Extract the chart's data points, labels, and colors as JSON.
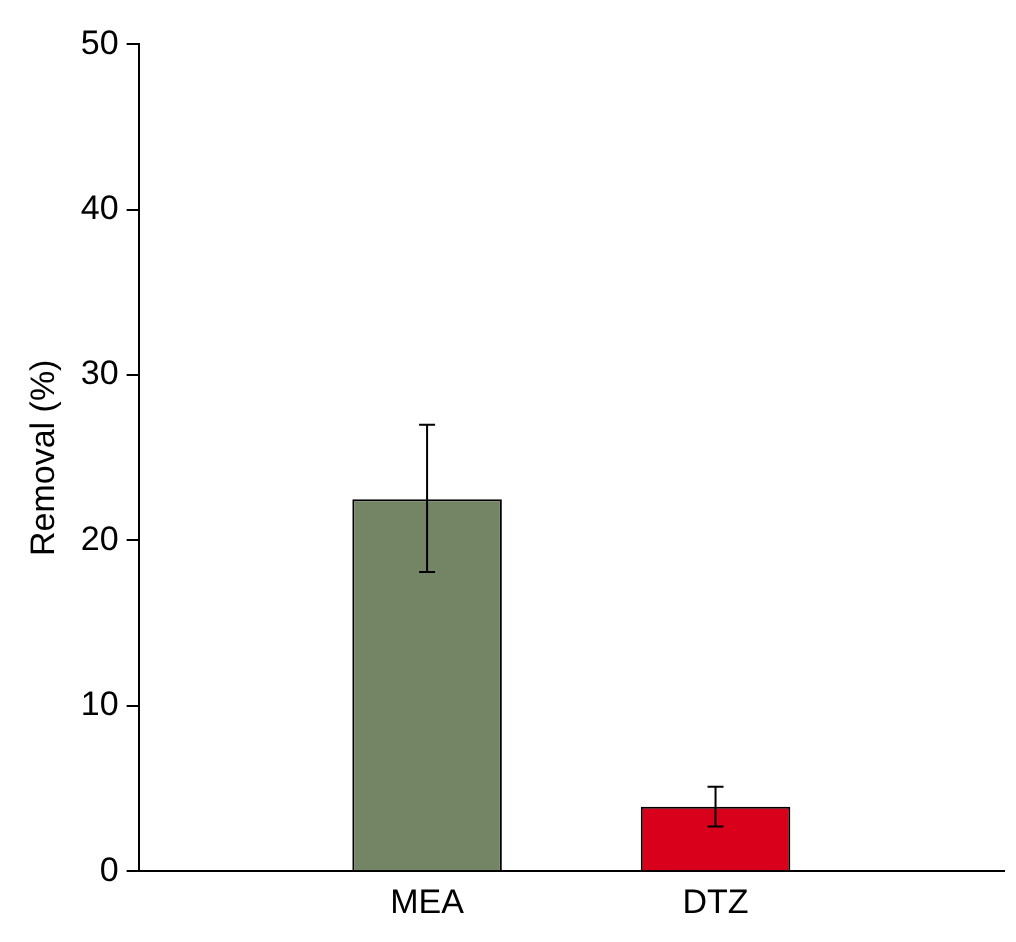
{
  "chart_data": {
    "type": "bar",
    "ylabel": "Removal (%)",
    "categories": [
      null,
      "MEA",
      "DTZ",
      null
    ],
    "values": [
      null,
      22.5,
      3.9,
      null
    ],
    "colors": [
      "#738564",
      "#738564",
      "#d9001b",
      "#d9001b"
    ],
    "errors": [
      null,
      [
        18.1,
        27.0
      ],
      [
        2.7,
        5.1
      ],
      null
    ],
    "ylim": [
      0,
      50
    ],
    "yticks": [
      0,
      10,
      20,
      30,
      40,
      50
    ],
    "grid": false,
    "legend": false
  }
}
